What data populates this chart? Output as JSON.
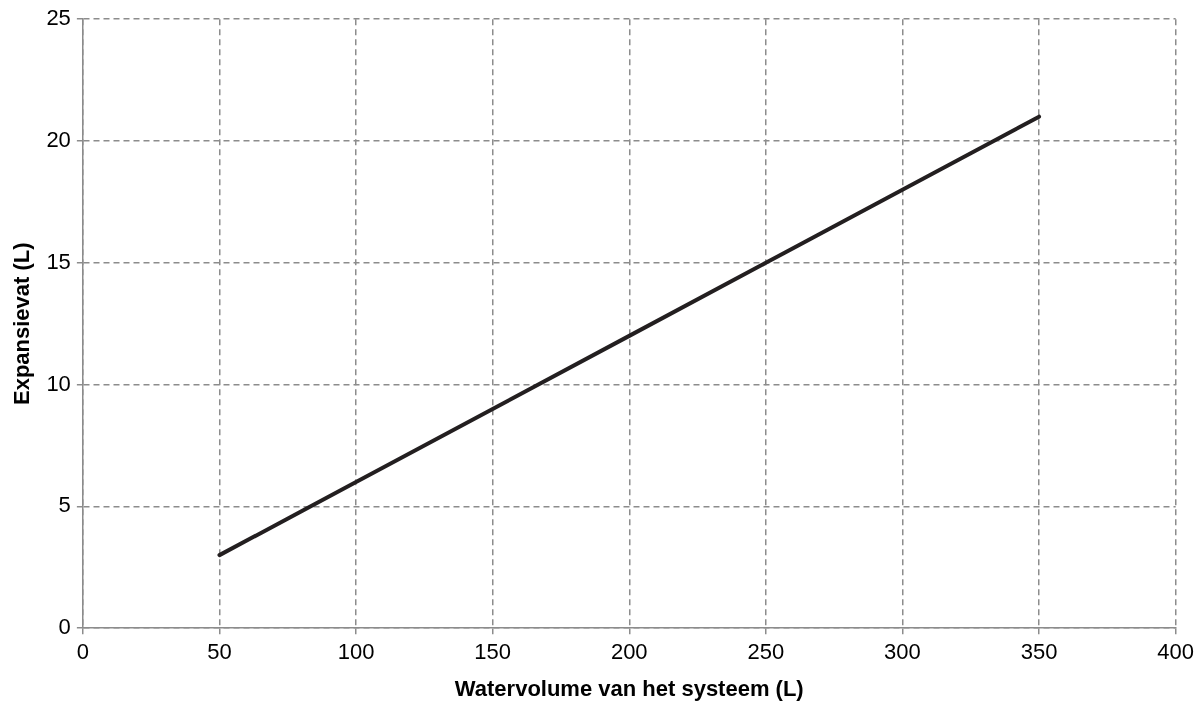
{
  "chart_data": {
    "type": "line",
    "xlabel": "Watervolume van het systeem (L)",
    "ylabel": "Expansievat (L)",
    "x": [
      50,
      100,
      150,
      200,
      250,
      300,
      350
    ],
    "series": [
      {
        "color": "#231f20",
        "values": [
          3,
          6,
          9,
          12,
          15,
          18,
          21
        ]
      }
    ],
    "xlim": [
      0,
      400
    ],
    "xticks": [
      0,
      50,
      100,
      150,
      200,
      250,
      300,
      350,
      400
    ],
    "ylim": [
      0,
      25
    ],
    "yticks": [
      0,
      5,
      10,
      15,
      20,
      25
    ],
    "grid": true,
    "legend": false,
    "marker": "none",
    "line_style": "solid"
  }
}
